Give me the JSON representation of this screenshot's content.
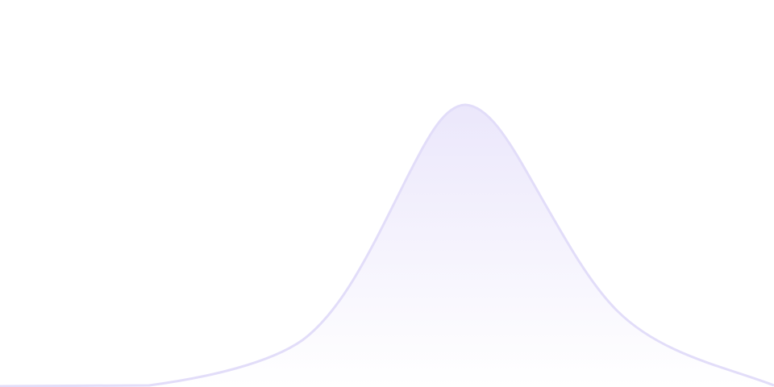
{
  "colors": {
    "background": "#ffffff",
    "stroke": "#e2ddf9",
    "fill_top": "#ebe7fb",
    "fill_bottom": "#ffffff"
  }
}
